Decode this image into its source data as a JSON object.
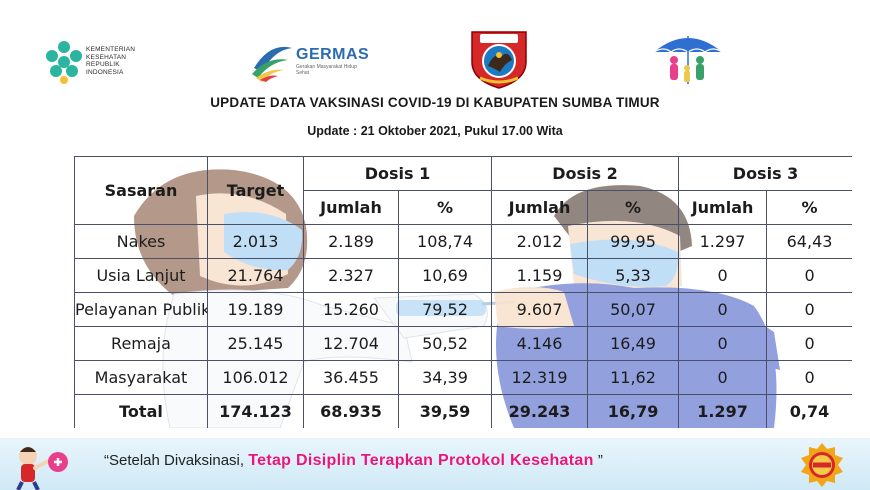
{
  "logos": {
    "kemenkes_lines": [
      "KEMENTERIAN",
      "KESEHATAN",
      "REPUBLIK",
      "INDONESIA"
    ],
    "germas_title": "GERMAS",
    "germas_sub": "Gerakan Masyarakat Hidup Sehat",
    "pemda_label": "SUMBA TIMUR"
  },
  "header": {
    "title": "UPDATE DATA VAKSINASI COVID-19 DI KABUPATEN SUMBA TIMUR",
    "update": "Update : 21 Oktober 2021, Pukul 17.00 Wita"
  },
  "table": {
    "head": {
      "sasaran": "Sasaran",
      "target": "Target",
      "dosis1": "Dosis 1",
      "dosis2": "Dosis 2",
      "dosis3": "Dosis 3",
      "jumlah": "Jumlah",
      "persen": "%"
    },
    "rows": [
      {
        "sasaran": "Nakes",
        "target": "2.013",
        "d1_jumlah": "2.189",
        "d1_persen": "108,74",
        "d2_jumlah": "2.012",
        "d2_persen": "99,95",
        "d3_jumlah": "1.297",
        "d3_persen": "64,43"
      },
      {
        "sasaran": "Usia Lanjut",
        "target": "21.764",
        "d1_jumlah": "2.327",
        "d1_persen": "10,69",
        "d2_jumlah": "1.159",
        "d2_persen": "5,33",
        "d3_jumlah": "0",
        "d3_persen": "0"
      },
      {
        "sasaran": "Pelayanan Publik",
        "target": "19.189",
        "d1_jumlah": "15.260",
        "d1_persen": "79,52",
        "d2_jumlah": "9.607",
        "d2_persen": "50,07",
        "d3_jumlah": "0",
        "d3_persen": "0"
      },
      {
        "sasaran": "Remaja",
        "target": "25.145",
        "d1_jumlah": "12.704",
        "d1_persen": "50,52",
        "d2_jumlah": "4.146",
        "d2_persen": "16,49",
        "d3_jumlah": "0",
        "d3_persen": "0"
      },
      {
        "sasaran": "Masyarakat",
        "target": "106.012",
        "d1_jumlah": "36.455",
        "d1_persen": "34,39",
        "d2_jumlah": "12.319",
        "d2_persen": "11,62",
        "d3_jumlah": "0",
        "d3_persen": "0"
      }
    ],
    "total": {
      "sasaran": "Total",
      "target": "174.123",
      "d1_jumlah": "68.935",
      "d1_persen": "39,59",
      "d2_jumlah": "29.243",
      "d2_persen": "16,79",
      "d3_jumlah": "1.297",
      "d3_persen": "0,74"
    }
  },
  "footer": {
    "quote_open": "“Setelah Divaksinasi, ",
    "quote_highlight": "Tetap Disiplin Terapkan Protokol Kesehatan",
    "quote_close": " ”"
  },
  "colors": {
    "border": "#4a4f6a",
    "highlight": "#e8157c",
    "germas_blue": "#2b6cb0",
    "kemenkes_green": "#2bb5a0"
  },
  "icons": [
    "kemenkes-logo-icon",
    "germas-logo-icon",
    "pemda-sumba-timur-logo-icon",
    "keluarga-umbrella-icon",
    "mascot-icon",
    "badge-icon"
  ]
}
